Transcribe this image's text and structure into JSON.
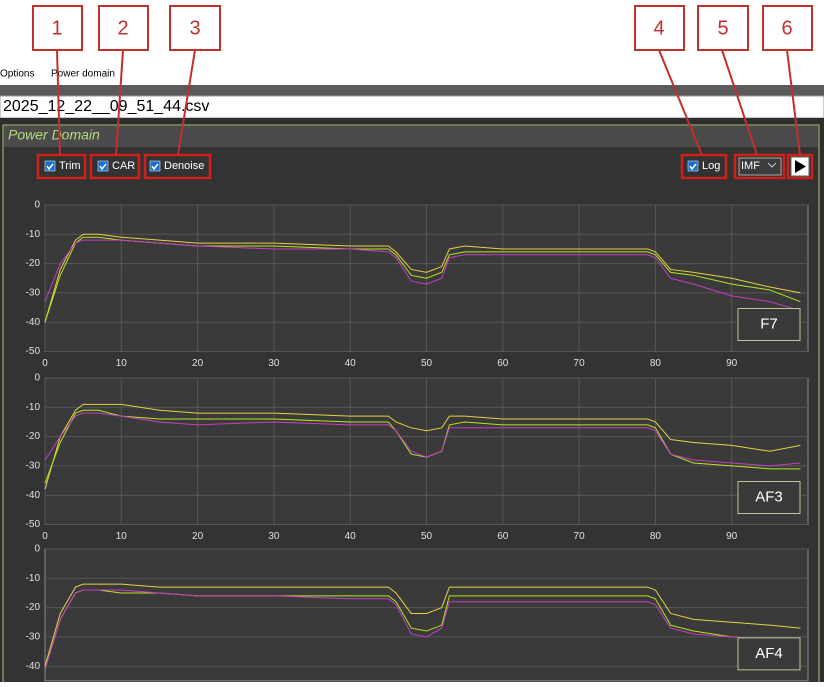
{
  "annotations": [
    "1",
    "2",
    "3",
    "4",
    "5",
    "6"
  ],
  "menu": [
    "Options",
    "Power domain"
  ],
  "file_name": "2025_12_22__09_51_44.csv",
  "panel_title": "Power Domain",
  "controls": {
    "checkboxes": [
      "Trim",
      "CAR",
      "Denoise",
      "Log"
    ],
    "dropdown": "IMF"
  },
  "chart_data": [
    {
      "type": "line",
      "label": "F7",
      "x": [
        0,
        2,
        4,
        5,
        7,
        10,
        15,
        20,
        30,
        40,
        45,
        46,
        48,
        50,
        52,
        53,
        55,
        60,
        70,
        79,
        80,
        82,
        85,
        90,
        95,
        99
      ],
      "xlim": [
        0,
        100
      ],
      "xticks": [
        0,
        10,
        20,
        30,
        40,
        50,
        60,
        70,
        80,
        90
      ],
      "ylim": [
        -50,
        0
      ],
      "yticks": [
        0,
        -10,
        -20,
        -30,
        -40,
        -50
      ],
      "grid": true,
      "series": [
        {
          "color": "#e6cf4a",
          "values": [
            -40,
            -22,
            -12,
            -10,
            -10,
            -11,
            -12,
            -13,
            -13,
            -14,
            -14,
            -16,
            -22,
            -23,
            -21,
            -15,
            -14,
            -15,
            -15,
            -15,
            -16,
            -22,
            -23,
            -25,
            -28,
            -30
          ]
        },
        {
          "color": "#b5e61d",
          "values": [
            -40,
            -24,
            -13,
            -11,
            -11,
            -12,
            -13,
            -14,
            -14,
            -15,
            -15,
            -17,
            -24,
            -25,
            -23,
            -17,
            -16,
            -16,
            -16,
            -16,
            -17,
            -23,
            -24,
            -27,
            -29,
            -33
          ]
        },
        {
          "color": "#c23fc2",
          "values": [
            -33,
            -20,
            -13,
            -12,
            -12,
            -12,
            -13,
            -14,
            -15,
            -15,
            -16,
            -18,
            -26,
            -27,
            -25,
            -18,
            -17,
            -17,
            -17,
            -17,
            -18,
            -25,
            -27,
            -31,
            -33,
            -36
          ]
        }
      ]
    },
    {
      "type": "line",
      "label": "AF3",
      "x": [
        0,
        2,
        4,
        5,
        7,
        10,
        15,
        20,
        30,
        40,
        45,
        46,
        48,
        50,
        52,
        53,
        55,
        60,
        70,
        79,
        80,
        82,
        85,
        90,
        95,
        99
      ],
      "xlim": [
        0,
        100
      ],
      "xticks": [
        0,
        10,
        20,
        30,
        40,
        50,
        60,
        70,
        80,
        90
      ],
      "ylim": [
        -50,
        0
      ],
      "yticks": [
        0,
        -10,
        -20,
        -30,
        -40,
        -50
      ],
      "grid": true,
      "series": [
        {
          "color": "#e6cf4a",
          "values": [
            -38,
            -20,
            -11,
            -9,
            -9,
            -9,
            -11,
            -12,
            -12,
            -13,
            -13,
            -15,
            -17,
            -18,
            -17,
            -13,
            -13,
            -14,
            -14,
            -14,
            -15,
            -21,
            -22,
            -23,
            -25,
            -23
          ]
        },
        {
          "color": "#b5e61d",
          "values": [
            -36,
            -22,
            -12,
            -11,
            -11,
            -13,
            -14,
            -14,
            -14,
            -15,
            -15,
            -18,
            -26,
            -27,
            -25,
            -16,
            -15,
            -16,
            -16,
            -16,
            -17,
            -26,
            -29,
            -30,
            -31,
            -31
          ]
        },
        {
          "color": "#c23fc2",
          "values": [
            -28,
            -20,
            -13,
            -12,
            -12,
            -13,
            -15,
            -16,
            -15,
            -16,
            -16,
            -18,
            -25,
            -27,
            -25,
            -17,
            -17,
            -17,
            -17,
            -17,
            -18,
            -26,
            -28,
            -29,
            -30,
            -29
          ]
        }
      ]
    },
    {
      "type": "line",
      "label": "AF4",
      "x": [
        0,
        2,
        4,
        5,
        7,
        10,
        15,
        20,
        30,
        40,
        45,
        46,
        48,
        50,
        52,
        53,
        55,
        60,
        70,
        79,
        80,
        82,
        85,
        90,
        95,
        99
      ],
      "xlim": [
        0,
        100
      ],
      "ylim": [
        -45,
        0
      ],
      "yticks": [
        0,
        -10,
        -20,
        -30,
        -40
      ],
      "grid": true,
      "series": [
        {
          "color": "#e6cf4a",
          "values": [
            -40,
            -22,
            -13,
            -12,
            -12,
            -12,
            -13,
            -13,
            -13,
            -13,
            -13,
            -15,
            -22,
            -22,
            -20,
            -13,
            -13,
            -13,
            -13,
            -13,
            -14,
            -22,
            -24,
            -25,
            -26,
            -27
          ]
        },
        {
          "color": "#b5e61d",
          "values": [
            -41,
            -24,
            -15,
            -14,
            -14,
            -15,
            -15,
            -16,
            -16,
            -16,
            -16,
            -18,
            -27,
            -28,
            -26,
            -16,
            -16,
            -16,
            -16,
            -16,
            -17,
            -26,
            -28,
            -30,
            -31,
            -32
          ]
        },
        {
          "color": "#c23fc2",
          "values": [
            -41,
            -24,
            -15,
            -14,
            -14,
            -14,
            -15,
            -16,
            -16,
            -17,
            -17,
            -19,
            -29,
            -30,
            -27,
            -18,
            -18,
            -18,
            -18,
            -18,
            -19,
            -27,
            -29,
            -30,
            -31,
            -32
          ]
        }
      ]
    }
  ]
}
